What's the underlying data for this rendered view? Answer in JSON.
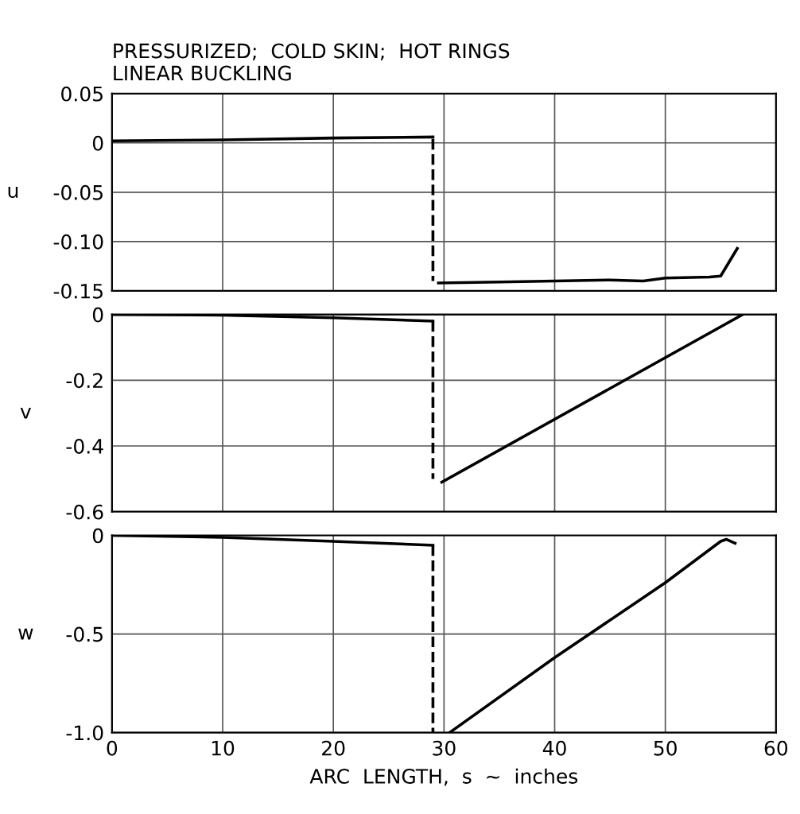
{
  "chart_data": [
    {
      "type": "line",
      "title": "PRESSURIZED;  COLD SKIN;  HOT RINGS",
      "subtitle": "LINEAR BUCKLING",
      "ylabel": "u",
      "xlim": [
        0,
        60
      ],
      "xticks": [
        0,
        10,
        20,
        30,
        40,
        50,
        60
      ],
      "ylim": [
        -0.15,
        0.05
      ],
      "yticks": [
        {
          "value": -0.15,
          "label": "-0.15"
        },
        {
          "value": -0.1,
          "label": "-0.10"
        },
        {
          "value": -0.05,
          "label": "-0.05"
        },
        0,
        {
          "value": 0.05,
          "label": "0.05"
        }
      ],
      "tick_labels": "y",
      "grid": true,
      "series": [
        {
          "color": "#000000",
          "line_style": "solid",
          "x": [
            0,
            10,
            20,
            29
          ],
          "values": [
            0.002,
            0.003,
            0.005,
            0.006
          ]
        },
        {
          "color": "#000000",
          "line_style": "dashed",
          "x": [
            29,
            29
          ],
          "values": [
            0.004,
            -0.14
          ]
        },
        {
          "color": "#000000",
          "line_style": "solid",
          "x": [
            29.5,
            35,
            40,
            45,
            48,
            50,
            54,
            55,
            56.5
          ],
          "values": [
            -0.142,
            -0.141,
            -0.14,
            -0.139,
            -0.14,
            -0.137,
            -0.136,
            -0.135,
            -0.107
          ]
        }
      ]
    },
    {
      "type": "line",
      "ylabel": "v",
      "xlim": [
        0,
        60
      ],
      "xticks": [
        0,
        10,
        20,
        30,
        40,
        50,
        60
      ],
      "ylim": [
        -0.6,
        0
      ],
      "yticks": [
        -0.6,
        -0.4,
        -0.2,
        0
      ],
      "tick_labels": "y",
      "grid": true,
      "series": [
        {
          "color": "#000000",
          "line_style": "solid",
          "x": [
            0,
            10,
            20,
            29
          ],
          "values": [
            0,
            -0.002,
            -0.01,
            -0.02
          ]
        },
        {
          "color": "#000000",
          "line_style": "dashed",
          "x": [
            29,
            29
          ],
          "values": [
            -0.02,
            -0.5
          ]
        },
        {
          "color": "#000000",
          "line_style": "solid",
          "x": [
            29.8,
            57
          ],
          "values": [
            -0.51,
            0
          ]
        }
      ]
    },
    {
      "type": "line",
      "ylabel": "w",
      "xlabel": "ARC  LENGTH,  s  ~  inches",
      "xlim": [
        0,
        60
      ],
      "xticks": [
        0,
        10,
        20,
        30,
        40,
        50,
        60
      ],
      "ylim": [
        -1.0,
        0
      ],
      "yticks": [
        {
          "value": -1.0,
          "label": "-1.0"
        },
        -0.5,
        0
      ],
      "grid": true,
      "series": [
        {
          "color": "#000000",
          "line_style": "solid",
          "x": [
            0,
            10,
            20,
            29
          ],
          "values": [
            0,
            -0.01,
            -0.03,
            -0.05
          ]
        },
        {
          "color": "#000000",
          "line_style": "dashed",
          "x": [
            29,
            29
          ],
          "values": [
            -0.05,
            -1.0
          ]
        },
        {
          "color": "#000000",
          "line_style": "solid",
          "x": [
            30.5,
            40,
            50,
            55,
            55.5,
            56.3
          ],
          "values": [
            -1.0,
            -0.62,
            -0.24,
            -0.03,
            -0.02,
            -0.04
          ]
        }
      ]
    }
  ]
}
